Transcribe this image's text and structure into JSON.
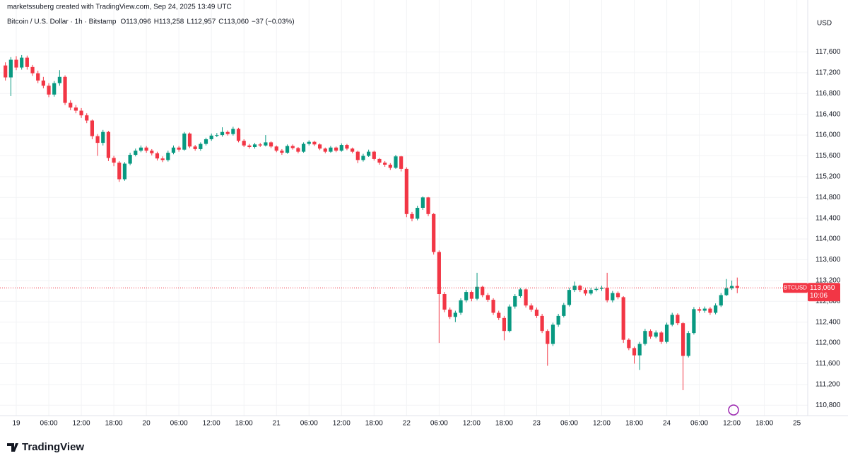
{
  "header": {
    "watermark": "marketssuberg created with TradingView.com, Sep 24, 2025 13:49 UTC",
    "symbol": "Bitcoin / U.S. Dollar · 1h · Bitstamp",
    "ohlc": [
      "O113,096",
      "H113,258",
      "L112,957",
      "C113,060",
      "−37 (−0.03%)"
    ],
    "currency": "USD"
  },
  "footer": {
    "brand": "TradingView"
  },
  "chart_data": {
    "type": "candlestick",
    "up_color": "#089981",
    "down_color": "#f23645",
    "grid": true,
    "xlim": [
      -1,
      148
    ],
    "ylim": [
      110600,
      118600
    ],
    "xticks": [
      {
        "value": 2,
        "label": "19"
      },
      {
        "value": 8,
        "label": "06:00"
      },
      {
        "value": 14,
        "label": "12:00"
      },
      {
        "value": 20,
        "label": "18:00"
      },
      {
        "value": 26,
        "label": "20"
      },
      {
        "value": 32,
        "label": "06:00"
      },
      {
        "value": 38,
        "label": "12:00"
      },
      {
        "value": 44,
        "label": "18:00"
      },
      {
        "value": 50,
        "label": "21"
      },
      {
        "value": 56,
        "label": "06:00"
      },
      {
        "value": 62,
        "label": "12:00"
      },
      {
        "value": 68,
        "label": "18:00"
      },
      {
        "value": 74,
        "label": "22"
      },
      {
        "value": 80,
        "label": "06:00"
      },
      {
        "value": 86,
        "label": "12:00"
      },
      {
        "value": 92,
        "label": "18:00"
      },
      {
        "value": 98,
        "label": "23"
      },
      {
        "value": 104,
        "label": "06:00"
      },
      {
        "value": 110,
        "label": "12:00"
      },
      {
        "value": 116,
        "label": "18:00"
      },
      {
        "value": 122,
        "label": "24"
      },
      {
        "value": 128,
        "label": "06:00"
      },
      {
        "value": 134,
        "label": "12:00"
      },
      {
        "value": 140,
        "label": "18:00"
      },
      {
        "value": 146,
        "label": "25"
      }
    ],
    "yticks": [
      {
        "value": 110800,
        "label": "110,800"
      },
      {
        "value": 111200,
        "label": "111,200"
      },
      {
        "value": 111600,
        "label": "111,600"
      },
      {
        "value": 112000,
        "label": "112,000"
      },
      {
        "value": 112400,
        "label": "112,400"
      },
      {
        "value": 112800,
        "label": "112,800"
      },
      {
        "value": 113200,
        "label": "113,200"
      },
      {
        "value": 113600,
        "label": "113,600"
      },
      {
        "value": 114000,
        "label": "114,000"
      },
      {
        "value": 114400,
        "label": "114,400"
      },
      {
        "value": 114800,
        "label": "114,800"
      },
      {
        "value": 115200,
        "label": "115,200"
      },
      {
        "value": 115600,
        "label": "115,600"
      },
      {
        "value": 116000,
        "label": "116,000"
      },
      {
        "value": 116400,
        "label": "116,400"
      },
      {
        "value": 116800,
        "label": "116,800"
      },
      {
        "value": 117200,
        "label": "117,200"
      },
      {
        "value": 117600,
        "label": "117,600"
      }
    ],
    "last_price": {
      "symbol": "BTCUSD",
      "value": 113060,
      "label": "113,060",
      "countdown": "10:06"
    },
    "open": [
      117340,
      117110,
      117450,
      117300,
      117490,
      117310,
      117190,
      117050,
      116950,
      116780,
      117000,
      117120,
      116620,
      116530,
      116470,
      116380,
      116280,
      115980,
      115850,
      116060,
      115560,
      115470,
      115150,
      115450,
      115620,
      115700,
      115760,
      115700,
      115650,
      115550,
      115520,
      115660,
      115760,
      115720,
      116030,
      115780,
      115730,
      115830,
      115920,
      115990,
      116000,
      116060,
      116020,
      116120,
      115890,
      115800,
      115770,
      115820,
      115800,
      115860,
      115780,
      115700,
      115660,
      115790,
      115750,
      115680,
      115830,
      115870,
      115820,
      115740,
      115680,
      115760,
      115700,
      115810,
      115740,
      115680,
      115520,
      115600,
      115680,
      115540,
      115470,
      115430,
      115370,
      115590,
      115350,
      114480,
      114390,
      114600,
      114800,
      114480,
      113750,
      112940,
      112640,
      112500,
      112580,
      112820,
      112980,
      112850,
      113080,
      112920,
      112830,
      112580,
      112480,
      112230,
      112700,
      112900,
      113030,
      112720,
      112640,
      112520,
      112230,
      111980,
      112350,
      112520,
      112730,
      113020,
      113100,
      113020,
      112950,
      113020,
      113040,
      113060,
      112820,
      112960,
      112880,
      112060,
      111900,
      111760,
      111980,
      112230,
      112120,
      112200,
      112020,
      112350,
      112540,
      112380,
      111750,
      112190,
      112650,
      112620,
      112660,
      112580,
      112720,
      112920,
      113050,
      113096
    ],
    "high": [
      117400,
      117500,
      117520,
      117540,
      117530,
      117350,
      117240,
      117120,
      117000,
      117040,
      117250,
      117150,
      116670,
      116580,
      116520,
      116420,
      116300,
      116020,
      116100,
      116080,
      115600,
      115500,
      115480,
      115660,
      115740,
      115800,
      115790,
      115730,
      115680,
      115590,
      115700,
      115800,
      115790,
      116060,
      116050,
      115810,
      115860,
      115950,
      116030,
      116040,
      116150,
      116090,
      116160,
      116140,
      115920,
      115830,
      115850,
      115850,
      116000,
      115880,
      115800,
      115730,
      115820,
      115820,
      115770,
      115860,
      115900,
      115890,
      115840,
      115760,
      115790,
      115780,
      115840,
      115830,
      115760,
      115700,
      115640,
      115720,
      115700,
      115560,
      115500,
      115460,
      115620,
      115600,
      115380,
      114520,
      114640,
      114820,
      114810,
      114500,
      113780,
      112980,
      112680,
      112620,
      112860,
      113020,
      113010,
      113350,
      113100,
      112960,
      112860,
      112620,
      112520,
      112740,
      112940,
      113060,
      113050,
      112760,
      112680,
      112560,
      112260,
      112390,
      112560,
      112770,
      113060,
      113180,
      113120,
      113050,
      113060,
      113080,
      113100,
      113350,
      113000,
      112990,
      112900,
      112090,
      111930,
      112020,
      112270,
      112260,
      112240,
      112230,
      112390,
      112580,
      112570,
      112400,
      112230,
      112690,
      112690,
      112700,
      112690,
      112760,
      112960,
      113230,
      113200,
      113258
    ],
    "low": [
      117050,
      116750,
      117250,
      117260,
      117260,
      117140,
      117000,
      116900,
      116730,
      116740,
      116950,
      116580,
      116480,
      116420,
      116330,
      116230,
      115920,
      115600,
      115800,
      115500,
      115400,
      115100,
      115120,
      115420,
      115590,
      115670,
      115660,
      115610,
      115510,
      115480,
      115490,
      115630,
      115680,
      115700,
      115750,
      115700,
      115700,
      115800,
      115890,
      115960,
      115970,
      115990,
      115990,
      115860,
      115770,
      115740,
      115740,
      115770,
      115780,
      115750,
      115670,
      115620,
      115640,
      115720,
      115650,
      115660,
      115800,
      115790,
      115710,
      115650,
      115660,
      115670,
      115680,
      115710,
      115650,
      115460,
      115490,
      115580,
      115510,
      115430,
      115390,
      115330,
      115350,
      115300,
      114420,
      114340,
      114360,
      114560,
      114440,
      113700,
      112000,
      112590,
      112460,
      112400,
      112540,
      112780,
      112800,
      112820,
      112880,
      112790,
      112540,
      112440,
      112050,
      112200,
      112660,
      112870,
      112680,
      112600,
      112480,
      112190,
      111560,
      111940,
      112310,
      112490,
      112700,
      112980,
      112980,
      112910,
      112920,
      112990,
      113000,
      112780,
      112780,
      112840,
      112000,
      111860,
      111600,
      111480,
      111950,
      112080,
      112090,
      111980,
      111990,
      112320,
      112340,
      111090,
      111720,
      112160,
      112580,
      112580,
      112540,
      112550,
      112690,
      112900,
      113020,
      112957
    ],
    "close": [
      117110,
      117450,
      117300,
      117490,
      117310,
      117190,
      117050,
      116950,
      116780,
      117000,
      117120,
      116620,
      116530,
      116470,
      116380,
      116280,
      115980,
      115850,
      116060,
      115560,
      115470,
      115150,
      115450,
      115620,
      115700,
      115760,
      115700,
      115650,
      115550,
      115520,
      115660,
      115760,
      115720,
      116030,
      115780,
      115730,
      115830,
      115920,
      115990,
      116000,
      116060,
      116020,
      116120,
      115890,
      115800,
      115770,
      115820,
      115800,
      115860,
      115780,
      115700,
      115660,
      115790,
      115750,
      115680,
      115830,
      115870,
      115820,
      115740,
      115680,
      115760,
      115700,
      115810,
      115740,
      115680,
      115520,
      115600,
      115680,
      115540,
      115470,
      115430,
      115370,
      115590,
      115350,
      114480,
      114390,
      114600,
      114800,
      114480,
      113750,
      112940,
      112640,
      112500,
      112580,
      112820,
      112980,
      112850,
      113080,
      112920,
      112830,
      112580,
      112480,
      112230,
      112700,
      112900,
      113030,
      112720,
      112640,
      112520,
      112230,
      111980,
      112350,
      112520,
      112730,
      113020,
      113100,
      113020,
      112950,
      113020,
      113040,
      113060,
      112820,
      112960,
      112880,
      112060,
      111900,
      111760,
      111980,
      112230,
      112120,
      112200,
      112020,
      112350,
      112540,
      112380,
      111750,
      112190,
      112650,
      112620,
      112660,
      112580,
      112720,
      112920,
      113050,
      113096,
      113060
    ]
  }
}
